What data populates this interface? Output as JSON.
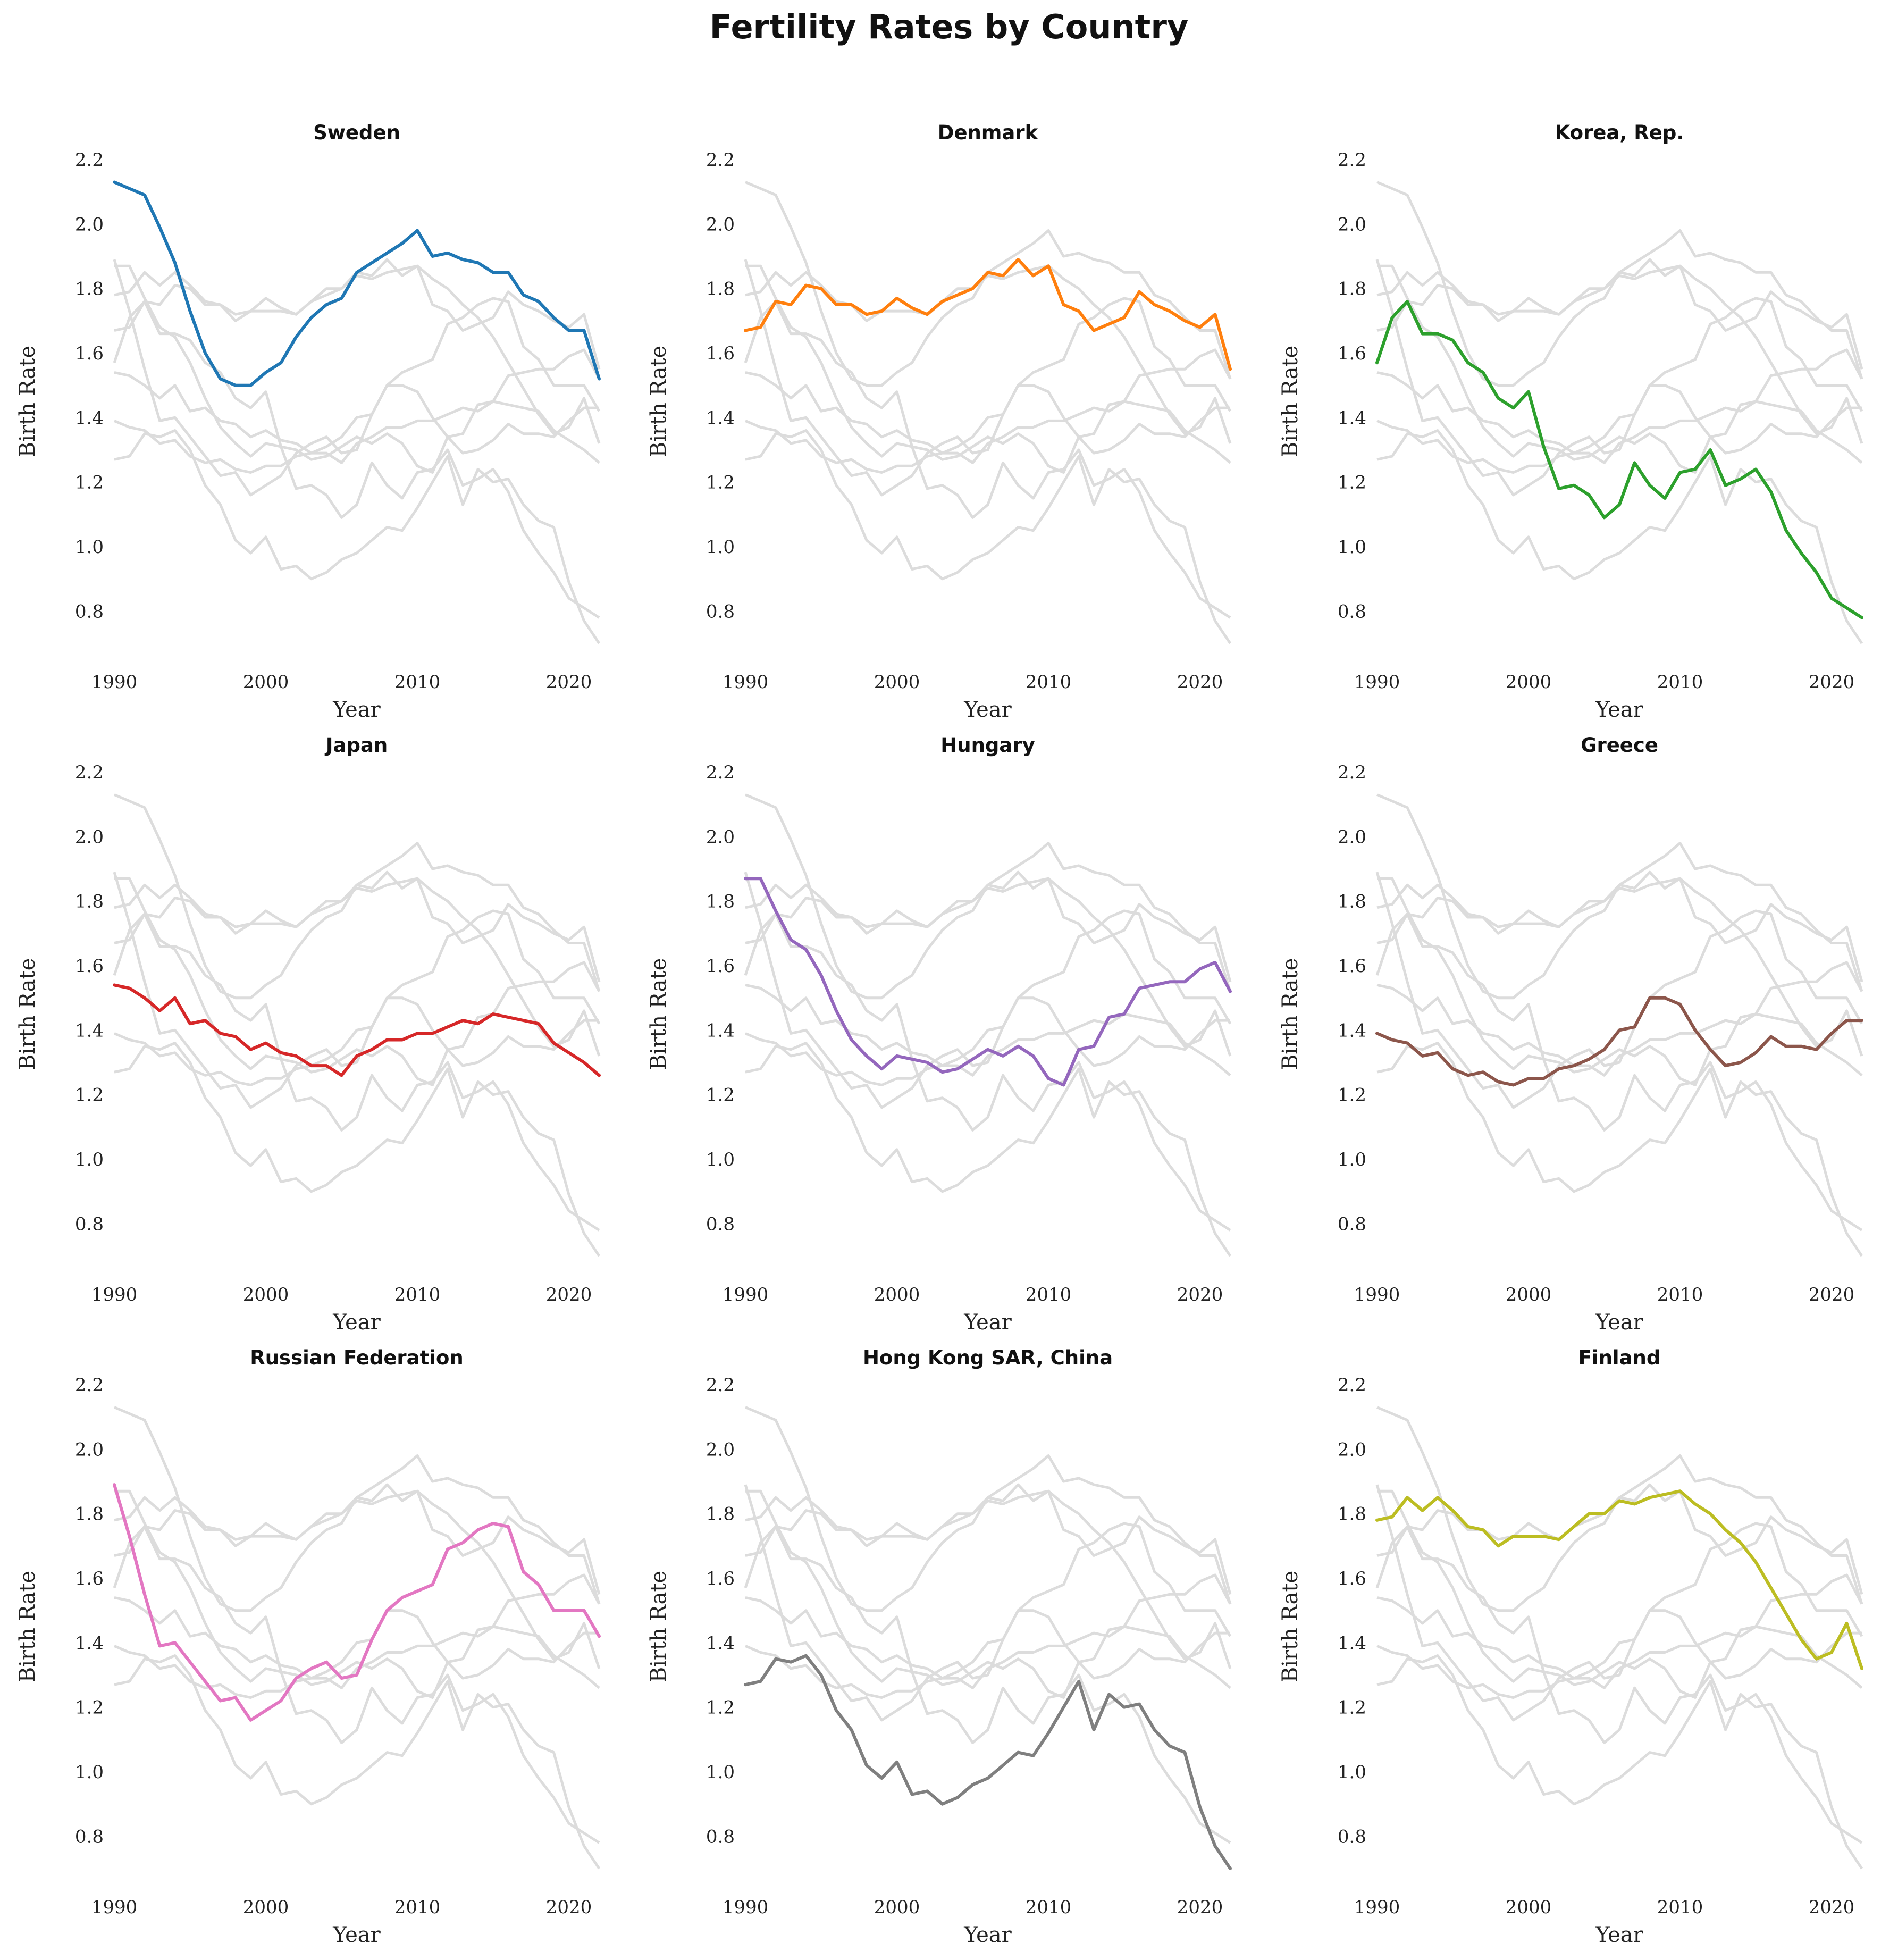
{
  "title": "Fertility Rates by Country",
  "chart_data": {
    "type": "line",
    "layout": "small-multiples",
    "xlabel": "Year",
    "ylabel": "Birth Rate",
    "xlim": [
      1990,
      2022
    ],
    "ylim": [
      0.7,
      2.2
    ],
    "xticks": [
      "1990",
      "2000",
      "2010",
      "2020"
    ],
    "yticks": [
      "0.8",
      "1.0",
      "1.2",
      "1.4",
      "1.6",
      "1.8",
      "2.0",
      "2.2"
    ],
    "background_line_color": "#dcdcdc",
    "grid": false,
    "x": [
      1990,
      1991,
      1992,
      1993,
      1994,
      1995,
      1996,
      1997,
      1998,
      1999,
      2000,
      2001,
      2002,
      2003,
      2004,
      2005,
      2006,
      2007,
      2008,
      2009,
      2010,
      2011,
      2012,
      2013,
      2014,
      2015,
      2016,
      2017,
      2018,
      2019,
      2020,
      2021,
      2022
    ],
    "series": [
      {
        "name": "Sweden",
        "color": "#1f77b4",
        "values": [
          2.13,
          2.11,
          2.09,
          1.99,
          1.88,
          1.73,
          1.6,
          1.52,
          1.5,
          1.5,
          1.54,
          1.57,
          1.65,
          1.71,
          1.75,
          1.77,
          1.85,
          1.88,
          1.91,
          1.94,
          1.98,
          1.9,
          1.91,
          1.89,
          1.88,
          1.85,
          1.85,
          1.78,
          1.76,
          1.71,
          1.67,
          1.67,
          1.52
        ]
      },
      {
        "name": "Denmark",
        "color": "#ff7f0e",
        "values": [
          1.67,
          1.68,
          1.76,
          1.75,
          1.81,
          1.8,
          1.75,
          1.75,
          1.72,
          1.73,
          1.77,
          1.74,
          1.72,
          1.76,
          1.78,
          1.8,
          1.85,
          1.84,
          1.89,
          1.84,
          1.87,
          1.75,
          1.73,
          1.67,
          1.69,
          1.71,
          1.79,
          1.75,
          1.73,
          1.7,
          1.68,
          1.72,
          1.55
        ]
      },
      {
        "name": "Korea, Rep.",
        "color": "#2ca02c",
        "values": [
          1.57,
          1.71,
          1.76,
          1.66,
          1.66,
          1.64,
          1.57,
          1.54,
          1.46,
          1.43,
          1.48,
          1.31,
          1.18,
          1.19,
          1.16,
          1.09,
          1.13,
          1.26,
          1.19,
          1.15,
          1.23,
          1.24,
          1.3,
          1.19,
          1.21,
          1.24,
          1.17,
          1.05,
          0.98,
          0.92,
          0.84,
          0.81,
          0.78
        ]
      },
      {
        "name": "Japan",
        "color": "#d62728",
        "values": [
          1.54,
          1.53,
          1.5,
          1.46,
          1.5,
          1.42,
          1.43,
          1.39,
          1.38,
          1.34,
          1.36,
          1.33,
          1.32,
          1.29,
          1.29,
          1.26,
          1.32,
          1.34,
          1.37,
          1.37,
          1.39,
          1.39,
          1.41,
          1.43,
          1.42,
          1.45,
          1.44,
          1.43,
          1.42,
          1.36,
          1.33,
          1.3,
          1.26
        ]
      },
      {
        "name": "Hungary",
        "color": "#9467bd",
        "values": [
          1.87,
          1.87,
          1.77,
          1.68,
          1.65,
          1.57,
          1.46,
          1.37,
          1.32,
          1.28,
          1.32,
          1.31,
          1.3,
          1.27,
          1.28,
          1.31,
          1.34,
          1.32,
          1.35,
          1.32,
          1.25,
          1.23,
          1.34,
          1.35,
          1.44,
          1.45,
          1.53,
          1.54,
          1.55,
          1.55,
          1.59,
          1.61,
          1.52
        ]
      },
      {
        "name": "Greece",
        "color": "#8c564b",
        "values": [
          1.39,
          1.37,
          1.36,
          1.32,
          1.33,
          1.28,
          1.26,
          1.27,
          1.24,
          1.23,
          1.25,
          1.25,
          1.28,
          1.29,
          1.31,
          1.34,
          1.4,
          1.41,
          1.5,
          1.5,
          1.48,
          1.4,
          1.34,
          1.29,
          1.3,
          1.33,
          1.38,
          1.35,
          1.35,
          1.34,
          1.39,
          1.43,
          1.43
        ]
      },
      {
        "name": "Russian Federation",
        "color": "#e377c2",
        "values": [
          1.89,
          1.73,
          1.55,
          1.39,
          1.4,
          1.34,
          1.28,
          1.22,
          1.23,
          1.16,
          1.19,
          1.22,
          1.29,
          1.32,
          1.34,
          1.29,
          1.3,
          1.41,
          1.5,
          1.54,
          1.56,
          1.58,
          1.69,
          1.71,
          1.75,
          1.77,
          1.76,
          1.62,
          1.58,
          1.5,
          1.5,
          1.5,
          1.42
        ]
      },
      {
        "name": "Hong Kong SAR, China",
        "color": "#7f7f7f",
        "values": [
          1.27,
          1.28,
          1.35,
          1.34,
          1.36,
          1.3,
          1.19,
          1.13,
          1.02,
          0.98,
          1.03,
          0.93,
          0.94,
          0.9,
          0.92,
          0.96,
          0.98,
          1.02,
          1.06,
          1.05,
          1.12,
          1.2,
          1.28,
          1.13,
          1.24,
          1.2,
          1.21,
          1.13,
          1.08,
          1.06,
          0.89,
          0.77,
          0.7
        ]
      },
      {
        "name": "Finland",
        "color": "#bcbd22",
        "values": [
          1.78,
          1.79,
          1.85,
          1.81,
          1.85,
          1.81,
          1.76,
          1.75,
          1.7,
          1.73,
          1.73,
          1.73,
          1.72,
          1.76,
          1.8,
          1.8,
          1.84,
          1.83,
          1.85,
          1.86,
          1.87,
          1.83,
          1.8,
          1.75,
          1.71,
          1.65,
          1.57,
          1.49,
          1.41,
          1.35,
          1.37,
          1.46,
          1.32
        ]
      }
    ]
  }
}
